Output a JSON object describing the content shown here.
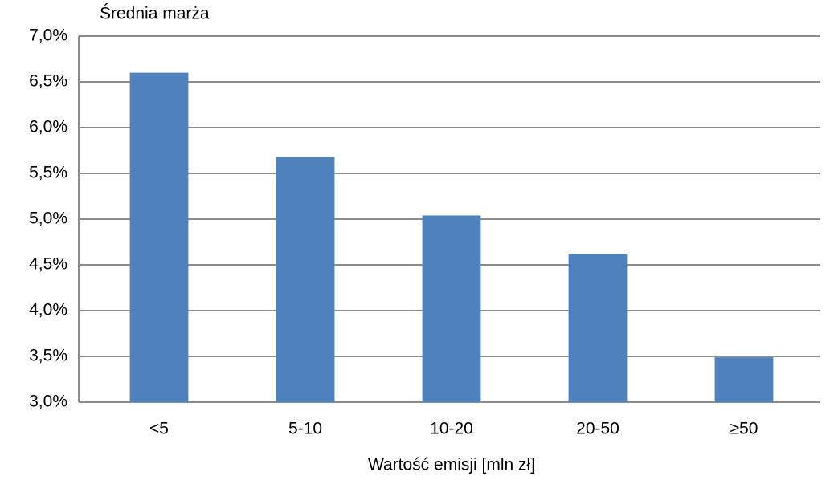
{
  "chart_data": {
    "type": "bar",
    "y_label": "Średnia marża",
    "x_label": "Wartość emisji [mln zł]",
    "categories": [
      "<5",
      "5-10",
      "10-20",
      "20-50",
      "≥50"
    ],
    "values": [
      6.6,
      5.68,
      5.04,
      4.62,
      3.49
    ],
    "color": "#4f81bd",
    "ylim": [
      3.0,
      7.0
    ],
    "yticks": [
      {
        "value": 3.0,
        "label": "3,0%"
      },
      {
        "value": 3.5,
        "label": "3,5%"
      },
      {
        "value": 4.0,
        "label": "4,0%"
      },
      {
        "value": 4.5,
        "label": "4,5%"
      },
      {
        "value": 5.0,
        "label": "5,0%"
      },
      {
        "value": 5.5,
        "label": "5,5%"
      },
      {
        "value": 6.0,
        "label": "6,0%"
      },
      {
        "value": 6.5,
        "label": "6,5%"
      },
      {
        "value": 7.0,
        "label": "7,0%"
      }
    ],
    "grid": true
  }
}
